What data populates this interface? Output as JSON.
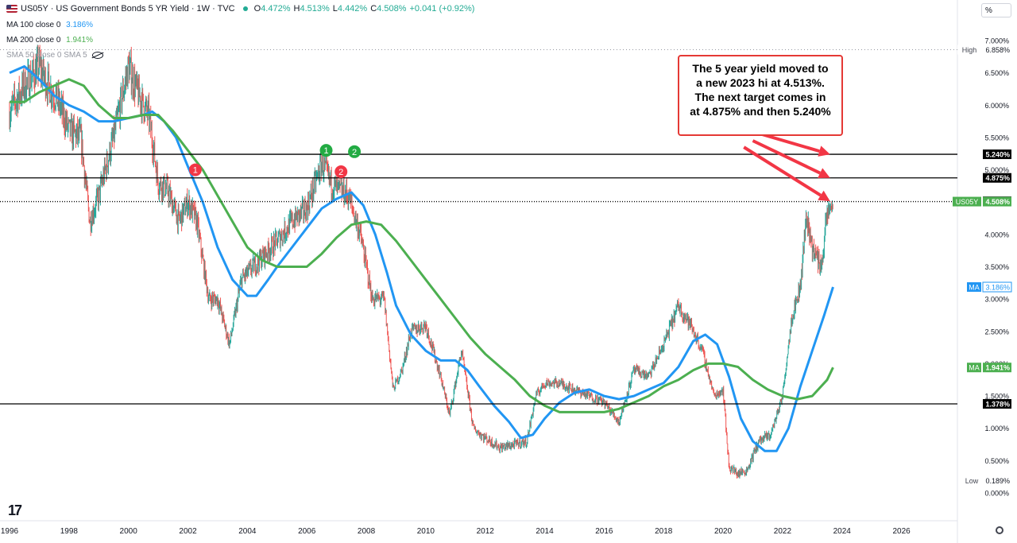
{
  "header": {
    "symbol": "US05Y",
    "title": "US05Y · US Government Bonds 5 YR Yield · 1W · TVC",
    "open": "4.472%",
    "high": "4.513%",
    "low": "4.442%",
    "close": "4.508%",
    "change": "+0.041 (+0.92%)",
    "o_lbl": "O",
    "h_lbl": "H",
    "l_lbl": "L",
    "c_lbl": "C"
  },
  "indicators": {
    "ma100": {
      "label": "MA 100 close 0",
      "value": "3.186%",
      "color": "#2196f3"
    },
    "ma200": {
      "label": "MA 200 close 0",
      "value": "1.941%",
      "color": "#4caf50"
    },
    "sma50": {
      "label": "SMA 50 close 0 SMA 5"
    }
  },
  "corner_label": "%",
  "logo": "17",
  "annotation": {
    "text": "The 5 year yield moved to\na new 2023 hi at 4.513%.\nThe next target comes in\nat 4.875% and then 5.240%"
  },
  "chart_data": {
    "type": "line",
    "title": "US05Y · US Government Bonds 5 YR Yield · 1W · TVC",
    "xlim": [
      1996,
      2027
    ],
    "ylim": [
      -0.2,
      7.15
    ],
    "x_ticks": [
      "1996",
      "1998",
      "2000",
      "2002",
      "2004",
      "2006",
      "2008",
      "2010",
      "2012",
      "2014",
      "2016",
      "2018",
      "2020",
      "2022",
      "2024",
      "2026"
    ],
    "y_ticks": [
      "0.000%",
      "0.500%",
      "1.000%",
      "1.500%",
      "2.000%",
      "2.500%",
      "3.000%",
      "3.500%",
      "4.000%",
      "4.500%",
      "5.000%",
      "5.500%",
      "6.000%",
      "6.500%",
      "7.000%"
    ],
    "series": [
      {
        "name": "US05Y",
        "color": "#26a69a",
        "x": [
          1996.0,
          1996.5,
          1997.0,
          1997.3,
          1997.6,
          1998.0,
          1998.4,
          1998.7,
          1999.0,
          1999.5,
          2000.0,
          2000.3,
          2000.7,
          2001.0,
          2001.3,
          2001.7,
          2002.0,
          2002.3,
          2002.7,
          2003.0,
          2003.4,
          2003.8,
          2004.2,
          2004.6,
          2005.0,
          2005.5,
          2006.0,
          2006.5,
          2006.8,
          2007.0,
          2007.4,
          2007.8,
          2008.2,
          2008.6,
          2008.9,
          2009.2,
          2009.5,
          2010.0,
          2010.5,
          2010.8,
          2011.2,
          2011.6,
          2012.0,
          2012.5,
          2013.0,
          2013.4,
          2013.7,
          2014.0,
          2014.5,
          2015.0,
          2015.5,
          2016.0,
          2016.5,
          2017.0,
          2017.5,
          2018.0,
          2018.5,
          2018.9,
          2019.3,
          2019.7,
          2020.0,
          2020.2,
          2020.5,
          2020.8,
          2021.2,
          2021.6,
          2022.0,
          2022.3,
          2022.6,
          2022.8,
          2023.0,
          2023.3,
          2023.5,
          2023.7
        ],
        "y": [
          5.9,
          6.3,
          6.6,
          6.3,
          6.1,
          5.6,
          5.5,
          4.2,
          4.6,
          5.5,
          6.6,
          6.2,
          5.8,
          4.8,
          4.7,
          4.2,
          4.5,
          4.2,
          3.0,
          3.0,
          2.3,
          3.3,
          3.5,
          3.7,
          3.9,
          4.2,
          4.4,
          5.1,
          4.8,
          4.7,
          4.6,
          4.0,
          3.0,
          3.0,
          1.6,
          1.9,
          2.5,
          2.6,
          1.8,
          1.2,
          2.2,
          1.0,
          0.85,
          0.7,
          0.75,
          0.8,
          1.5,
          1.7,
          1.7,
          1.6,
          1.5,
          1.4,
          1.1,
          1.9,
          1.8,
          2.3,
          2.9,
          2.6,
          2.2,
          1.5,
          1.6,
          0.4,
          0.3,
          0.35,
          0.8,
          0.9,
          1.5,
          2.7,
          3.2,
          4.3,
          3.8,
          3.5,
          4.3,
          4.508
        ]
      },
      {
        "name": "MA 100 close 0",
        "color": "#2196f3",
        "x": [
          1996.0,
          1996.5,
          1997.0,
          1997.5,
          1998.0,
          1998.5,
          1999.0,
          1999.5,
          2000.0,
          2000.5,
          2000.8,
          2001.2,
          2001.6,
          2002.0,
          2002.5,
          2003.0,
          2003.5,
          2004.0,
          2004.3,
          2004.7,
          2005.0,
          2005.5,
          2006.0,
          2006.5,
          2007.0,
          2007.5,
          2007.9,
          2008.3,
          2008.7,
          2009.0,
          2009.5,
          2010.0,
          2010.5,
          2011.0,
          2011.4,
          2011.8,
          2012.3,
          2012.8,
          2013.2,
          2013.6,
          2014.0,
          2014.5,
          2015.0,
          2015.5,
          2016.0,
          2016.5,
          2017.0,
          2017.5,
          2018.0,
          2018.5,
          2019.0,
          2019.4,
          2019.8,
          2020.2,
          2020.6,
          2021.0,
          2021.4,
          2021.8,
          2022.2,
          2022.6,
          2023.0,
          2023.4,
          2023.7
        ],
        "y": [
          6.5,
          6.6,
          6.4,
          6.15,
          6.0,
          5.9,
          5.75,
          5.75,
          5.8,
          5.85,
          5.9,
          5.75,
          5.5,
          5.05,
          4.5,
          3.8,
          3.3,
          3.05,
          3.05,
          3.3,
          3.5,
          3.8,
          4.1,
          4.4,
          4.55,
          4.65,
          4.45,
          4.0,
          3.4,
          2.9,
          2.45,
          2.2,
          2.05,
          2.05,
          1.9,
          1.65,
          1.35,
          1.1,
          0.85,
          0.9,
          1.15,
          1.4,
          1.55,
          1.6,
          1.5,
          1.45,
          1.5,
          1.6,
          1.7,
          1.95,
          2.35,
          2.45,
          2.3,
          1.8,
          1.15,
          0.8,
          0.65,
          0.65,
          1.0,
          1.65,
          2.2,
          2.75,
          3.186
        ]
      },
      {
        "name": "MA 200 close 0",
        "color": "#4caf50",
        "x": [
          1996.0,
          1996.5,
          1997.0,
          1997.5,
          1998.0,
          1998.5,
          1999.0,
          1999.5,
          2000.0,
          2000.5,
          2001.0,
          2001.5,
          2002.0,
          2002.5,
          2003.0,
          2003.5,
          2004.0,
          2004.5,
          2005.0,
          2005.5,
          2006.0,
          2006.5,
          2007.0,
          2007.5,
          2008.0,
          2008.5,
          2009.0,
          2009.5,
          2010.0,
          2010.5,
          2011.0,
          2011.5,
          2012.0,
          2012.5,
          2013.0,
          2013.5,
          2014.0,
          2014.5,
          2015.0,
          2015.5,
          2016.0,
          2016.5,
          2017.0,
          2017.5,
          2018.0,
          2018.5,
          2019.0,
          2019.5,
          2020.0,
          2020.5,
          2021.0,
          2021.5,
          2022.0,
          2022.5,
          2023.0,
          2023.5,
          2023.7
        ],
        "y": [
          6.05,
          6.05,
          6.2,
          6.3,
          6.4,
          6.3,
          6.0,
          5.8,
          5.8,
          5.85,
          5.85,
          5.6,
          5.3,
          5.0,
          4.6,
          4.2,
          3.8,
          3.6,
          3.5,
          3.5,
          3.5,
          3.7,
          3.95,
          4.15,
          4.2,
          4.15,
          3.9,
          3.6,
          3.3,
          3.0,
          2.7,
          2.4,
          2.15,
          1.95,
          1.75,
          1.5,
          1.35,
          1.25,
          1.25,
          1.25,
          1.25,
          1.3,
          1.4,
          1.5,
          1.65,
          1.75,
          1.9,
          2.0,
          2.0,
          1.95,
          1.75,
          1.6,
          1.5,
          1.45,
          1.5,
          1.75,
          1.941
        ]
      }
    ],
    "horizontal_levels": [
      {
        "value": 5.24,
        "label": "5.240%"
      },
      {
        "value": 4.875,
        "label": "4.875%"
      },
      {
        "value": 4.508,
        "label": "4.508%",
        "dotted": true
      },
      {
        "value": 1.378,
        "label": "1.378%"
      }
    ],
    "price_tags": [
      {
        "value": 6.858,
        "prefix": "High",
        "label": "6.858%",
        "style": "high"
      },
      {
        "value": 5.24,
        "label": "5.240%",
        "style": "black"
      },
      {
        "value": 4.875,
        "label": "4.875%",
        "style": "black"
      },
      {
        "value": 4.513,
        "label": "4.513%",
        "style": "black"
      },
      {
        "value": 4.508,
        "prefix": "US05Y",
        "label": "4.508%",
        "style": "green"
      },
      {
        "value": 3.186,
        "prefix": "MA",
        "label": "3.186%",
        "style": "blue"
      },
      {
        "value": 1.941,
        "prefix": "MA",
        "label": "1.941%",
        "style": "green"
      },
      {
        "value": 1.378,
        "label": "1.378%",
        "style": "black"
      },
      {
        "value": 0.189,
        "prefix": "Low",
        "label": "0.189%",
        "style": "low"
      }
    ],
    "markers": [
      {
        "x": 2002.25,
        "y": 5.0,
        "label": "1",
        "color": "#f23645"
      },
      {
        "x": 2006.65,
        "y": 5.3,
        "label": "1",
        "color": "#22ab43"
      },
      {
        "x": 2007.15,
        "y": 4.97,
        "label": "2",
        "color": "#f23645"
      },
      {
        "x": 2007.6,
        "y": 5.28,
        "label": "2",
        "color": "#22ab43"
      }
    ],
    "arrows": [
      {
        "from": [
          2021.3,
          5.55
        ],
        "to": [
          2023.6,
          5.24
        ]
      },
      {
        "from": [
          2021.0,
          5.45
        ],
        "to": [
          2023.6,
          4.875
        ]
      },
      {
        "from": [
          2020.7,
          5.35
        ],
        "to": [
          2023.6,
          4.513
        ]
      }
    ],
    "grid": false,
    "legend": "top-left"
  }
}
